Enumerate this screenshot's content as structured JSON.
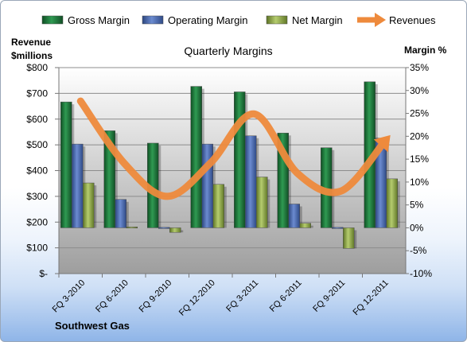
{
  "chart_data": {
    "type": "bar",
    "title": "Quarterly Margins",
    "categories": [
      "FQ 3-2010",
      "FQ 6-2010",
      "FQ 9-2010",
      "FQ 12-2010",
      "FQ 3-2011",
      "FQ 6-2011",
      "FQ 9-2011",
      "FQ 12-2011"
    ],
    "series": [
      {
        "name": "Gross Margin",
        "type": "bar",
        "axis": "right",
        "color": "#1f7a3c",
        "values": [
          27.5,
          21.2,
          18.5,
          30.9,
          29.7,
          20.7,
          17.5,
          31.9
        ]
      },
      {
        "name": "Operating Margin",
        "type": "bar",
        "axis": "right",
        "color": "#4a6ab8",
        "values": [
          18.3,
          6.2,
          0.1,
          18.3,
          20.1,
          5.2,
          0.1,
          19.6
        ]
      },
      {
        "name": "Net Margin",
        "type": "bar",
        "axis": "right",
        "color": "#9bb455",
        "values": [
          9.8,
          0.2,
          -1.0,
          9.5,
          11.1,
          1.0,
          -4.5,
          10.7
        ]
      },
      {
        "name": "Revenues",
        "type": "line",
        "axis": "left",
        "color": "#ee8a3c",
        "values": [
          670,
          430,
          300,
          430,
          620,
          390,
          320,
          510
        ]
      }
    ],
    "y_left": {
      "label": [
        "Revenue",
        "$millions"
      ],
      "min": 0,
      "max": 800,
      "step": 100,
      "ticks": [
        "$-",
        "$100",
        "$200",
        "$300",
        "$400",
        "$500",
        "$600",
        "$700",
        "$800"
      ]
    },
    "y_right": {
      "label": "Margin %",
      "min": -10,
      "max": 35,
      "step": 5,
      "ticks": [
        "-10%",
        "-5%",
        "0%",
        "5%",
        "10%",
        "15%",
        "20%",
        "25%",
        "30%",
        "35%"
      ]
    },
    "legend": "top",
    "grid": true,
    "footer": "Southwest Gas"
  }
}
